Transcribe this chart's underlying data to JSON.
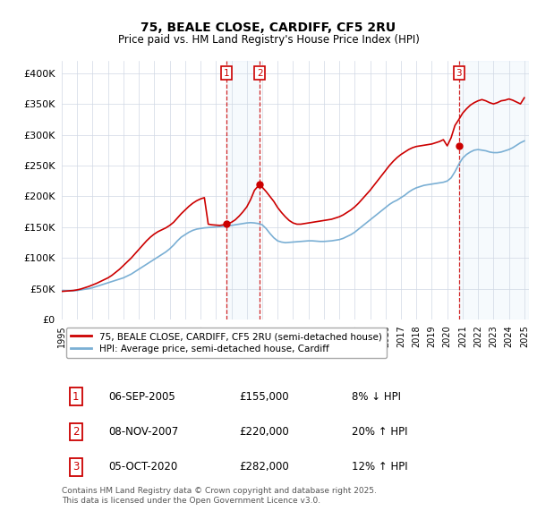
{
  "title": "75, BEALE CLOSE, CARDIFF, CF5 2RU",
  "subtitle": "Price paid vs. HM Land Registry's House Price Index (HPI)",
  "ylim": [
    0,
    420000
  ],
  "yticks": [
    0,
    50000,
    100000,
    150000,
    200000,
    250000,
    300000,
    350000,
    400000
  ],
  "ytick_labels": [
    "£0",
    "£50K",
    "£100K",
    "£150K",
    "£200K",
    "£250K",
    "£300K",
    "£350K",
    "£400K"
  ],
  "xlim_start": 1995.0,
  "xlim_end": 2025.3,
  "xtick_years": [
    1995,
    1996,
    1997,
    1998,
    1999,
    2000,
    2001,
    2002,
    2003,
    2004,
    2005,
    2006,
    2007,
    2008,
    2009,
    2010,
    2011,
    2012,
    2013,
    2014,
    2015,
    2016,
    2017,
    2018,
    2019,
    2020,
    2021,
    2022,
    2023,
    2024,
    2025
  ],
  "sale_dates": [
    2005.68,
    2007.85,
    2020.76
  ],
  "sale_prices": [
    155000,
    220000,
    282000
  ],
  "sale_labels": [
    "1",
    "2",
    "3"
  ],
  "legend_line1": "75, BEALE CLOSE, CARDIFF, CF5 2RU (semi-detached house)",
  "legend_line2": "HPI: Average price, semi-detached house, Cardiff",
  "table_rows": [
    {
      "num": "1",
      "date": "06-SEP-2005",
      "price": "£155,000",
      "rel": "8% ↓ HPI"
    },
    {
      "num": "2",
      "date": "08-NOV-2007",
      "price": "£220,000",
      "rel": "20% ↑ HPI"
    },
    {
      "num": "3",
      "date": "05-OCT-2020",
      "price": "£282,000",
      "rel": "12% ↑ HPI"
    }
  ],
  "footer": "Contains HM Land Registry data © Crown copyright and database right 2025.\nThis data is licensed under the Open Government Licence v3.0.",
  "price_line_color": "#cc0000",
  "hpi_line_color": "#7aafd4",
  "vline_color": "#cc0000",
  "shade_color": "#d0e4f7",
  "background_color": "#ffffff",
  "hpi_data_x": [
    1995.0,
    1995.25,
    1995.5,
    1995.75,
    1996.0,
    1996.25,
    1996.5,
    1996.75,
    1997.0,
    1997.25,
    1997.5,
    1997.75,
    1998.0,
    1998.25,
    1998.5,
    1998.75,
    1999.0,
    1999.25,
    1999.5,
    1999.75,
    2000.0,
    2000.25,
    2000.5,
    2000.75,
    2001.0,
    2001.25,
    2001.5,
    2001.75,
    2002.0,
    2002.25,
    2002.5,
    2002.75,
    2003.0,
    2003.25,
    2003.5,
    2003.75,
    2004.0,
    2004.25,
    2004.5,
    2004.75,
    2005.0,
    2005.25,
    2005.5,
    2005.75,
    2006.0,
    2006.25,
    2006.5,
    2006.75,
    2007.0,
    2007.25,
    2007.5,
    2007.75,
    2008.0,
    2008.25,
    2008.5,
    2008.75,
    2009.0,
    2009.25,
    2009.5,
    2009.75,
    2010.0,
    2010.25,
    2010.5,
    2010.75,
    2011.0,
    2011.25,
    2011.5,
    2011.75,
    2012.0,
    2012.25,
    2012.5,
    2012.75,
    2013.0,
    2013.25,
    2013.5,
    2013.75,
    2014.0,
    2014.25,
    2014.5,
    2014.75,
    2015.0,
    2015.25,
    2015.5,
    2015.75,
    2016.0,
    2016.25,
    2016.5,
    2016.75,
    2017.0,
    2017.25,
    2017.5,
    2017.75,
    2018.0,
    2018.25,
    2018.5,
    2018.75,
    2019.0,
    2019.25,
    2019.5,
    2019.75,
    2020.0,
    2020.25,
    2020.5,
    2020.75,
    2021.0,
    2021.25,
    2021.5,
    2021.75,
    2022.0,
    2022.25,
    2022.5,
    2022.75,
    2023.0,
    2023.25,
    2023.5,
    2023.75,
    2024.0,
    2024.25,
    2024.5,
    2024.75,
    2025.0
  ],
  "hpi_data_y": [
    47500,
    47000,
    46800,
    47000,
    47500,
    48500,
    49500,
    50500,
    52000,
    54000,
    56000,
    58000,
    60000,
    62000,
    64000,
    66000,
    68000,
    71000,
    74000,
    78000,
    82000,
    86000,
    90000,
    94000,
    98000,
    102000,
    106000,
    110000,
    115000,
    121000,
    128000,
    134000,
    138000,
    142000,
    145000,
    147000,
    148000,
    149000,
    149500,
    150000,
    150500,
    151000,
    151500,
    152000,
    153000,
    154000,
    155000,
    156000,
    157000,
    157500,
    157000,
    156000,
    154000,
    148000,
    140000,
    133000,
    128000,
    126000,
    125000,
    125500,
    126000,
    126500,
    127000,
    127500,
    128000,
    128000,
    127500,
    127000,
    127000,
    127500,
    128000,
    129000,
    130000,
    132000,
    135000,
    138000,
    142000,
    147000,
    152000,
    157000,
    162000,
    167000,
    172000,
    177000,
    182000,
    187000,
    191000,
    194000,
    198000,
    202000,
    207000,
    211000,
    214000,
    216000,
    218000,
    219000,
    220000,
    221000,
    222000,
    223000,
    225000,
    230000,
    240000,
    252000,
    262000,
    268000,
    272000,
    275000,
    276000,
    275000,
    274000,
    272000,
    271000,
    271000,
    272000,
    274000,
    276000,
    279000,
    283000,
    287000,
    290000
  ],
  "price_data_x": [
    1995.0,
    1995.25,
    1995.5,
    1995.75,
    1996.0,
    1996.25,
    1996.5,
    1996.75,
    1997.0,
    1997.25,
    1997.5,
    1997.75,
    1998.0,
    1998.25,
    1998.5,
    1998.75,
    1999.0,
    1999.25,
    1999.5,
    1999.75,
    2000.0,
    2000.25,
    2000.5,
    2000.75,
    2001.0,
    2001.25,
    2001.5,
    2001.75,
    2002.0,
    2002.25,
    2002.5,
    2002.75,
    2003.0,
    2003.25,
    2003.5,
    2003.75,
    2004.0,
    2004.25,
    2004.5,
    2004.75,
    2005.0,
    2005.25,
    2005.5,
    2005.68,
    2006.0,
    2006.25,
    2006.5,
    2006.75,
    2007.0,
    2007.25,
    2007.5,
    2007.85,
    2008.0,
    2008.25,
    2008.5,
    2008.75,
    2009.0,
    2009.25,
    2009.5,
    2009.75,
    2010.0,
    2010.25,
    2010.5,
    2010.75,
    2011.0,
    2011.25,
    2011.5,
    2011.75,
    2012.0,
    2012.25,
    2012.5,
    2012.75,
    2013.0,
    2013.25,
    2013.5,
    2013.75,
    2014.0,
    2014.25,
    2014.5,
    2014.75,
    2015.0,
    2015.25,
    2015.5,
    2015.75,
    2016.0,
    2016.25,
    2016.5,
    2016.75,
    2017.0,
    2017.25,
    2017.5,
    2017.75,
    2018.0,
    2018.25,
    2018.5,
    2018.75,
    2019.0,
    2019.25,
    2019.5,
    2019.75,
    2020.0,
    2020.25,
    2020.5,
    2020.76,
    2021.0,
    2021.25,
    2021.5,
    2021.75,
    2022.0,
    2022.25,
    2022.5,
    2022.75,
    2023.0,
    2023.25,
    2023.5,
    2023.75,
    2024.0,
    2024.25,
    2024.5,
    2024.75,
    2025.0
  ],
  "price_data_y": [
    46000,
    46500,
    47000,
    47500,
    48500,
    50000,
    52000,
    54000,
    56500,
    59000,
    62000,
    65000,
    68000,
    72000,
    77000,
    82000,
    88000,
    94000,
    100000,
    107000,
    114000,
    121000,
    128000,
    134000,
    139000,
    143000,
    146000,
    149000,
    153000,
    158000,
    165000,
    172000,
    178000,
    184000,
    189000,
    193000,
    196000,
    198000,
    155000,
    154000,
    153500,
    153000,
    154000,
    155000,
    158000,
    162000,
    168000,
    175000,
    183000,
    195000,
    210000,
    220000,
    215000,
    208000,
    200000,
    192000,
    182000,
    174000,
    167000,
    161000,
    157000,
    155000,
    155000,
    156000,
    157000,
    158000,
    159000,
    160000,
    161000,
    162000,
    163000,
    165000,
    167000,
    170000,
    174000,
    178000,
    183000,
    189000,
    196000,
    203000,
    210000,
    218000,
    226000,
    234000,
    242000,
    250000,
    257000,
    263000,
    268000,
    272000,
    276000,
    279000,
    281000,
    282000,
    283000,
    284000,
    285000,
    287000,
    289000,
    292000,
    282000,
    295000,
    315000,
    325000,
    335000,
    342000,
    348000,
    352000,
    355000,
    357000,
    355000,
    352000,
    350000,
    352000,
    355000,
    356000,
    358000,
    356000,
    353000,
    350000,
    360000
  ]
}
